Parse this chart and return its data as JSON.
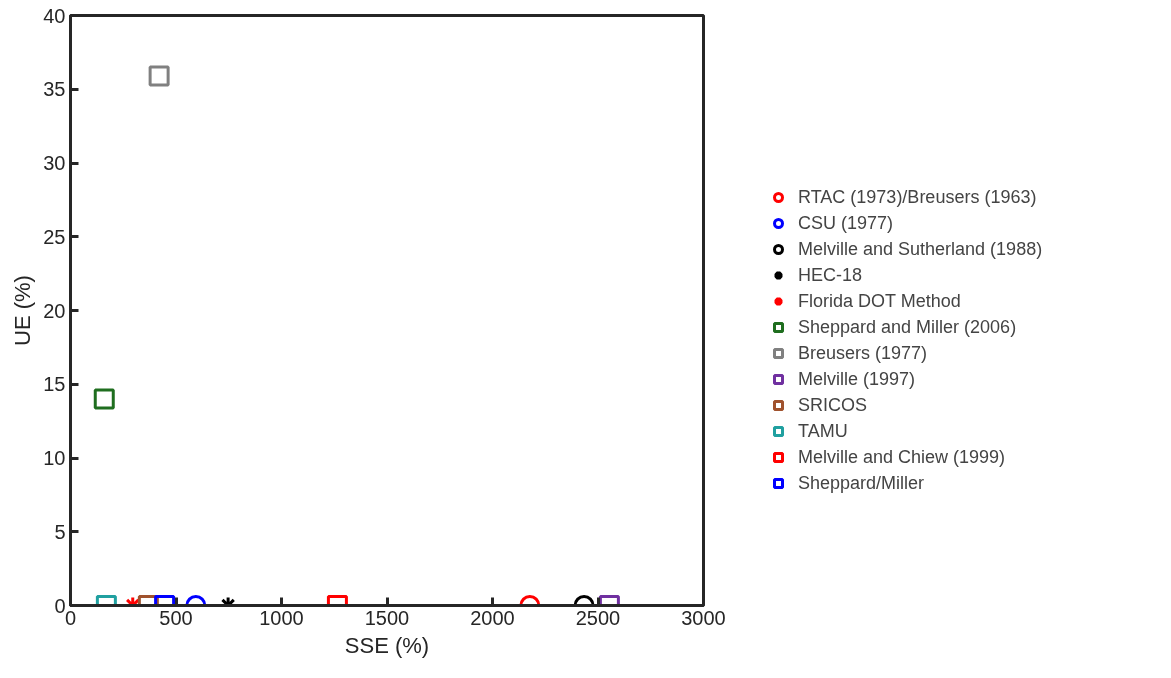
{
  "chart_data": {
    "type": "scatter",
    "xlabel": "SSE (%)",
    "ylabel": "UE (%)",
    "xlim": [
      0,
      3000
    ],
    "xticks": [
      0,
      500,
      1000,
      1500,
      2000,
      2500,
      3000
    ],
    "ylim": [
      0,
      40
    ],
    "yticks": [
      0,
      5,
      10,
      15,
      20,
      25,
      30,
      35,
      40
    ],
    "grid": false,
    "legend": "right",
    "series": [
      {
        "name": "RTAC (1973)/Breusers (1963)",
        "color": "#ff0000",
        "marker": "circle",
        "x": [
          2177
        ],
        "values": [
          0
        ]
      },
      {
        "name": "CSU (1977)",
        "color": "#0000ff",
        "marker": "circle",
        "x": [
          594
        ],
        "values": [
          0
        ]
      },
      {
        "name": "Melville and Sutherland (1988)",
        "color": "#000000",
        "marker": "circle",
        "x": [
          2434
        ],
        "values": [
          0
        ]
      },
      {
        "name": "HEC-18",
        "color": "#000000",
        "marker": "cross",
        "x": [
          747
        ],
        "values": [
          0
        ]
      },
      {
        "name": "Florida DOT Method",
        "color": "#ff0000",
        "marker": "cross",
        "x": [
          295
        ],
        "values": [
          0
        ]
      },
      {
        "name": "Sheppard and Miller (2006)",
        "color": "#1f6e1f",
        "marker": "square",
        "x": [
          160
        ],
        "values": [
          14
        ]
      },
      {
        "name": "Breusers (1977)",
        "color": "#808080",
        "marker": "square",
        "x": [
          420
        ],
        "values": [
          35.9
        ]
      },
      {
        "name": "Melville (1997)",
        "color": "#7030a0",
        "marker": "square",
        "x": [
          2554
        ],
        "values": [
          0
        ]
      },
      {
        "name": "SRICOS",
        "color": "#a0522d",
        "marker": "square",
        "x": [
          369
        ],
        "values": [
          0
        ]
      },
      {
        "name": "TAMU",
        "color": "#20a0a0",
        "marker": "square",
        "x": [
          170
        ],
        "values": [
          0
        ]
      },
      {
        "name": "Melville and Chiew (1999)",
        "color": "#ff0000",
        "marker": "square",
        "x": [
          1265
        ],
        "values": [
          0
        ]
      },
      {
        "name": "Sheppard/Miller",
        "color": "#0000ff",
        "marker": "square",
        "x": [
          446
        ],
        "values": [
          0
        ]
      }
    ]
  }
}
